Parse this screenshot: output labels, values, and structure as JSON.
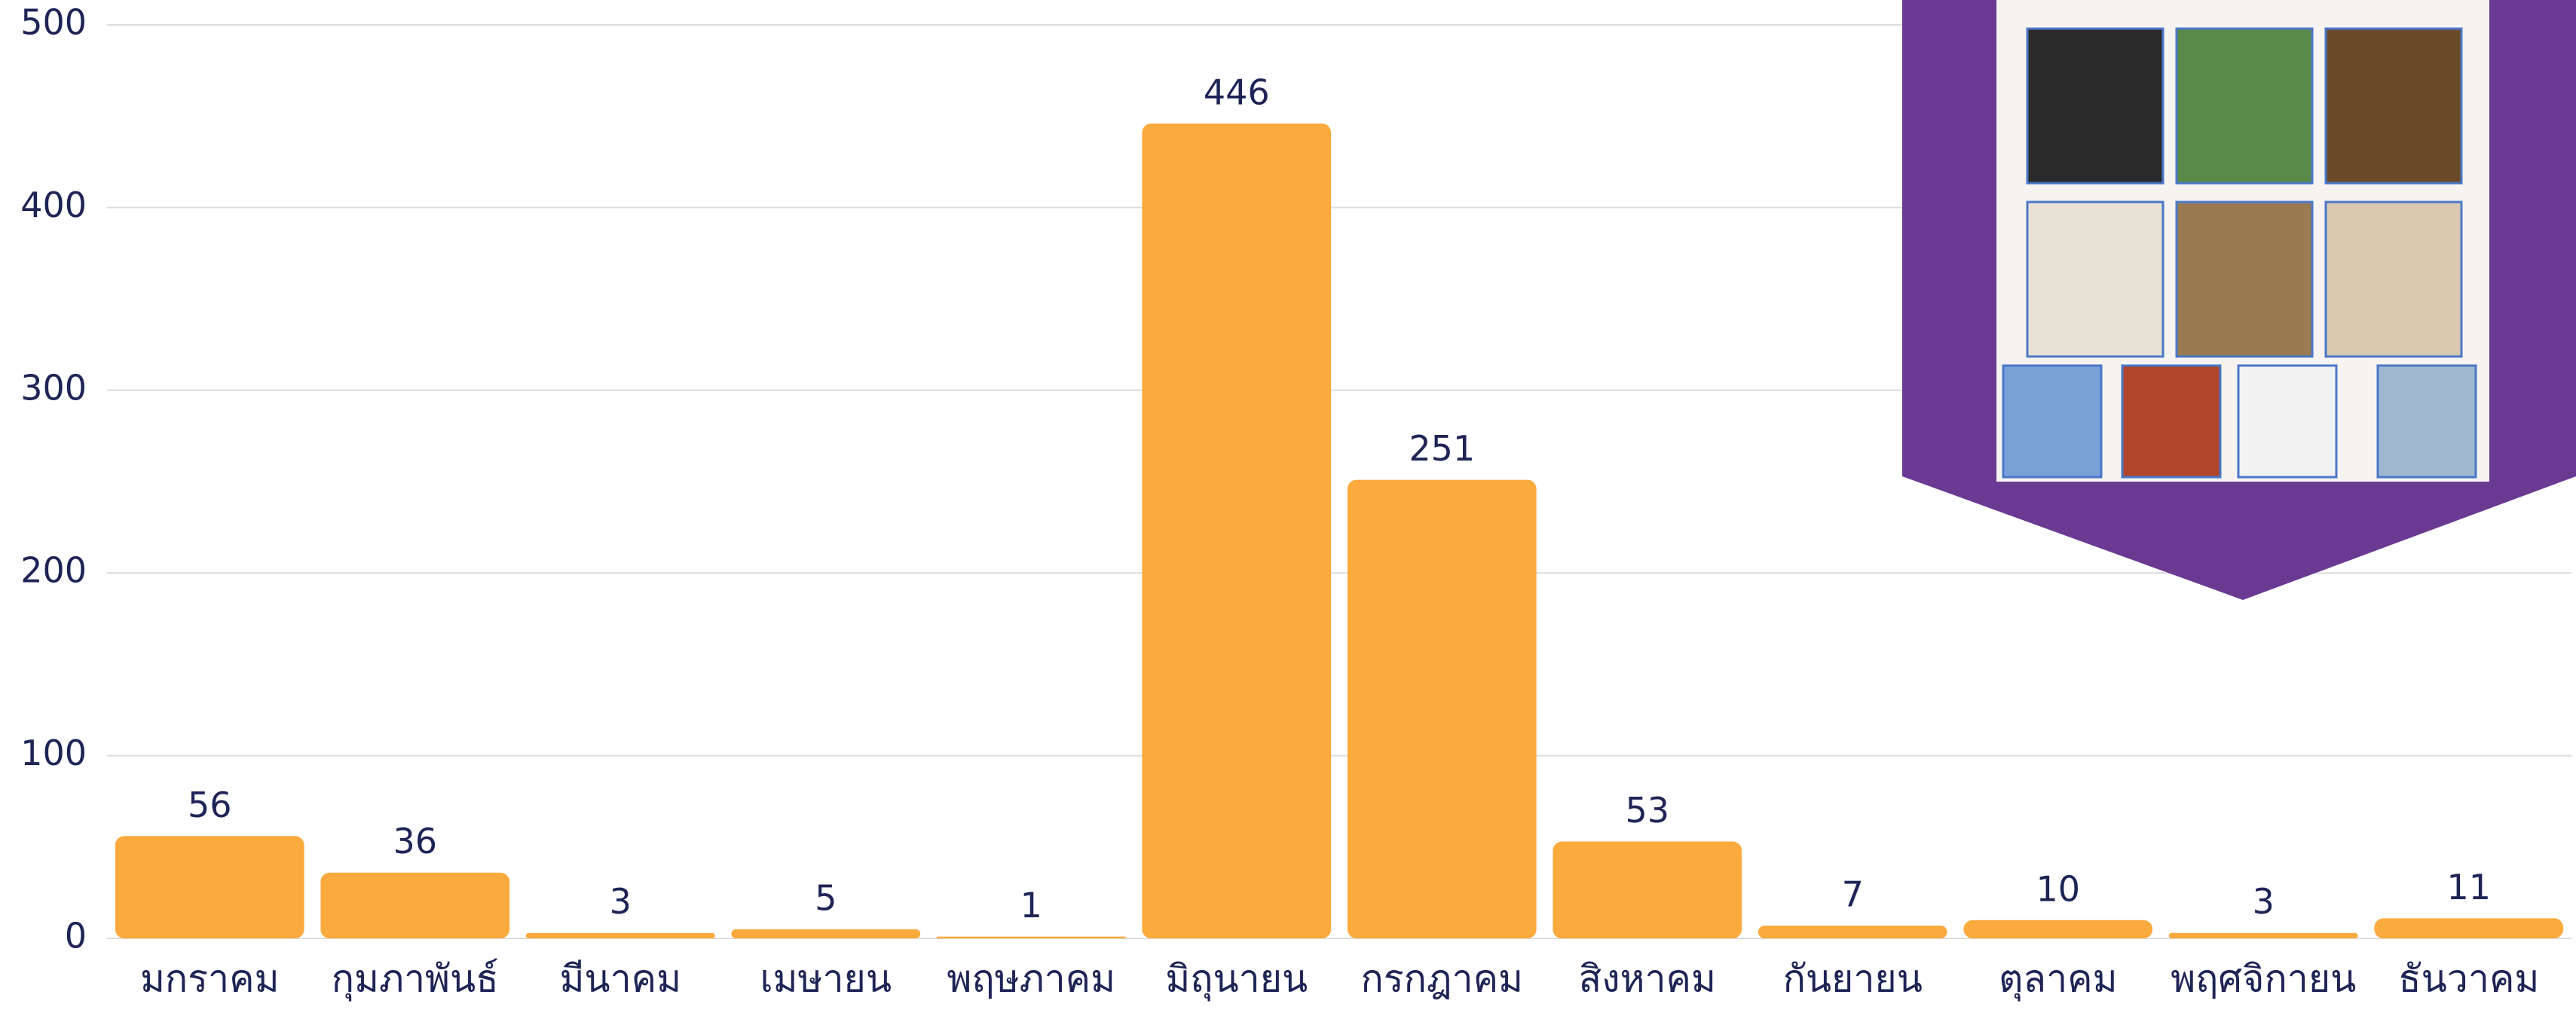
{
  "chart_data": {
    "type": "bar",
    "categories": [
      "มกราคม",
      "กุมภาพันธ์",
      "มีนาคม",
      "เมษายน",
      "พฤษภาคม",
      "มิถุนายน",
      "กรกฎาคม",
      "สิงหาคม",
      "กันยายน",
      "ตุลาคม",
      "พฤศจิกายน",
      "ธันวาคม"
    ],
    "values": [
      56,
      36,
      3,
      5,
      1,
      446,
      251,
      53,
      7,
      10,
      3,
      11
    ],
    "color": "#fbaa3d",
    "ylim": [
      0,
      500
    ],
    "yticks": [
      0,
      100,
      200,
      300,
      400,
      500
    ],
    "grid": true
  }
}
